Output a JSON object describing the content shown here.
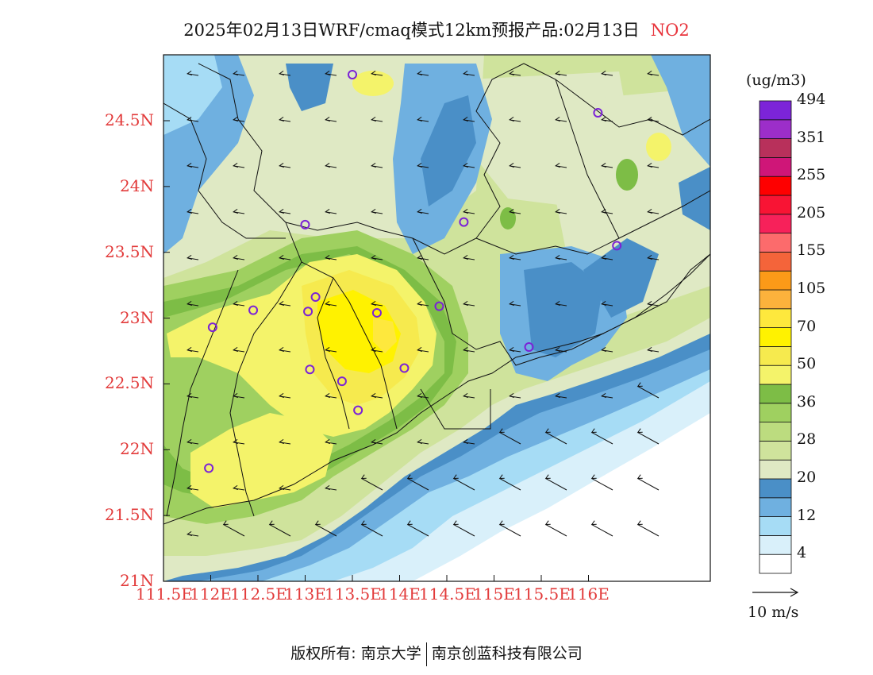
{
  "title": {
    "text": "2025年02月13日WRF/cmaq模式12km预报产品:02月13日",
    "species": "NO2",
    "species_color": "#e8343c"
  },
  "axes": {
    "lat_ticks": [
      "24.5N",
      "24N",
      "23.5N",
      "23N",
      "22.5N",
      "22N",
      "21.5N",
      "21N"
    ],
    "lon_ticks": [
      "111.5E",
      "112E",
      "112.5E",
      "113E",
      "113.5E",
      "114E",
      "114.5E",
      "115E",
      "115.5E",
      "116E"
    ],
    "tick_color": "#e23a3a",
    "extent": {
      "lon_min": 111.5,
      "lon_max": 117.25,
      "lat_min": 21.0,
      "lat_max": 25.0
    }
  },
  "colorbar": {
    "unit": "(ug/m3)",
    "colors": [
      "#ffffff",
      "#d9f0fa",
      "#a6dcf5",
      "#6fb0e0",
      "#4a8fc7",
      "#dfe9c4",
      "#cfe39c",
      "#bcdc7f",
      "#9fd060",
      "#7dbd46",
      "#f4f36a",
      "#f6ea4e",
      "#fff200",
      "#fee83d",
      "#fcb23c",
      "#fb9a18",
      "#f4643a",
      "#fc6b6c",
      "#f7215a",
      "#f81434",
      "#fe0000",
      "#cf1678",
      "#b8305b",
      "#9c2ec9",
      "#7c24d8"
    ],
    "labels": [
      "4",
      "12",
      "20",
      "28",
      "36",
      "50",
      "70",
      "105",
      "155",
      "205",
      "255",
      "351",
      "494"
    ]
  },
  "wind_legend": {
    "label": "10  m/s"
  },
  "monitoring_sites": [
    {
      "lon": 113.5,
      "lat": 24.85
    },
    {
      "lon": 116.1,
      "lat": 24.56
    },
    {
      "lon": 113.0,
      "lat": 23.71
    },
    {
      "lon": 114.68,
      "lat": 23.73
    },
    {
      "lon": 116.3,
      "lat": 23.55
    },
    {
      "lon": 113.11,
      "lat": 23.16
    },
    {
      "lon": 113.03,
      "lat": 23.05
    },
    {
      "lon": 113.76,
      "lat": 23.04
    },
    {
      "lon": 112.45,
      "lat": 23.06
    },
    {
      "lon": 112.02,
      "lat": 22.93
    },
    {
      "lon": 114.42,
      "lat": 23.09
    },
    {
      "lon": 115.37,
      "lat": 22.78
    },
    {
      "lon": 113.05,
      "lat": 22.61
    },
    {
      "lon": 114.05,
      "lat": 22.62
    },
    {
      "lon": 113.39,
      "lat": 22.52
    },
    {
      "lon": 113.56,
      "lat": 22.3
    },
    {
      "lon": 111.98,
      "lat": 21.86
    }
  ],
  "footer": {
    "copyright": "版权所有: 南京大学",
    "company": "南京创蓝科技有限公司"
  }
}
